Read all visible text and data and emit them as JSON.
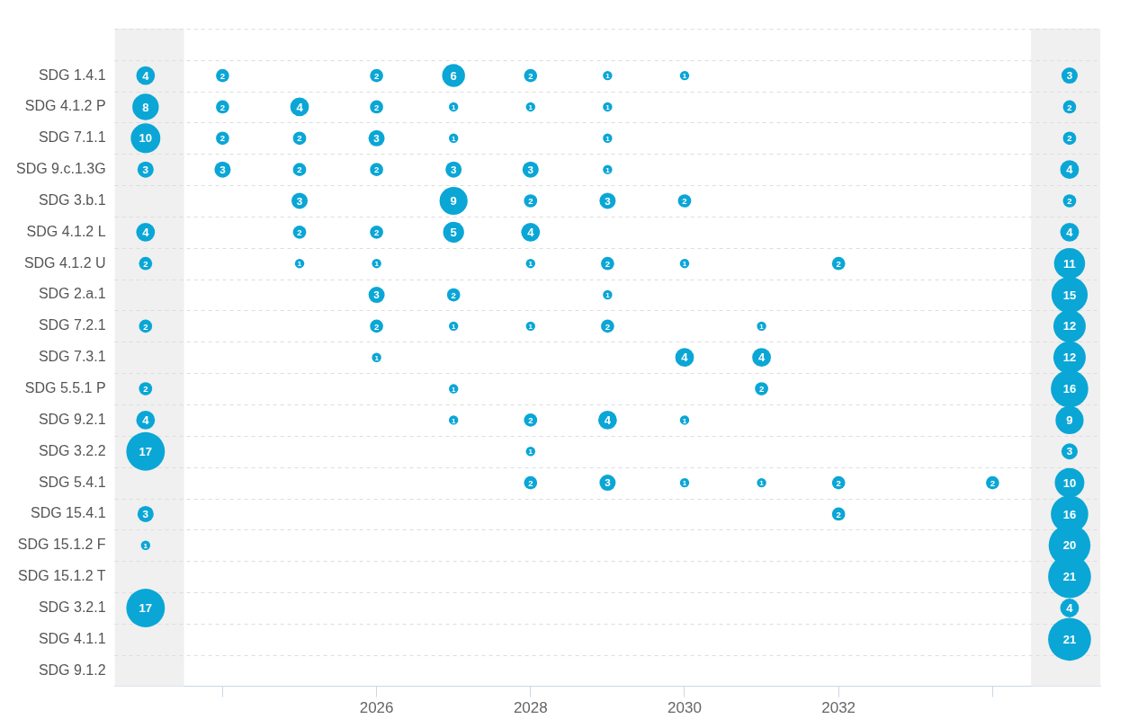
{
  "chart_data": {
    "type": "bubble",
    "orientation": "horizontal",
    "categories": [
      null,
      "SDG 1.4.1",
      "SDG 4.1.2 P",
      "SDG 7.1.1",
      "SDG 9.c.1.3G",
      "SDG 3.b.1",
      "SDG 4.1.2 L",
      "SDG 4.1.2 U",
      "SDG 2.a.1",
      "SDG 7.2.1",
      "SDG 7.3.1",
      "SDG 5.5.1 P",
      "SDG 9.2.1",
      "SDG 3.2.2",
      "SDG 5.4.1",
      "SDG 15.4.1",
      "SDG 15.1.2 F",
      "SDG 15.1.2 T",
      "SDG 3.2.1",
      "SDG 4.1.1",
      "SDG 9.1.2"
    ],
    "xlim": [
      2022.6,
      2035.4
    ],
    "xticks": [
      {
        "value": 2024,
        "label": null
      },
      2026,
      2028,
      2030,
      2032,
      {
        "value": 2034,
        "label": null
      }
    ],
    "grid": "y",
    "legend": false,
    "bands": [
      {
        "axis": "x",
        "from": 2022.6,
        "to": 2023.5,
        "color": "#f0f0f0"
      },
      {
        "axis": "x",
        "from": 2034.5,
        "to": 2035.4,
        "color": "#f0f0f0"
      }
    ],
    "series": [
      {
        "color": "#0aa6d6",
        "values": [
          null,
          2023,
          2023,
          2023,
          2023,
          null,
          2023,
          2023,
          null,
          2023,
          null,
          2023,
          2023,
          2023,
          null,
          2023,
          2023,
          null,
          2023,
          null,
          null
        ],
        "sizes": [
          null,
          4,
          8,
          10,
          3,
          null,
          4,
          2,
          null,
          2,
          null,
          2,
          4,
          17,
          null,
          3,
          1,
          null,
          17,
          null,
          null
        ],
        "value_labels": [
          null,
          "4",
          "8",
          "10",
          "3",
          null,
          "4",
          "2",
          null,
          "2",
          null,
          "2",
          "4",
          "17",
          null,
          "3",
          "1",
          null,
          "17",
          null,
          null
        ]
      },
      {
        "color": "#0aa6d6",
        "values": [
          null,
          2024,
          2024,
          2024,
          2024,
          null,
          null,
          null,
          null,
          null,
          null,
          null,
          null,
          null,
          null,
          null,
          null,
          null,
          null,
          null,
          null
        ],
        "sizes": [
          null,
          2,
          2,
          2,
          3,
          null,
          null,
          null,
          null,
          null,
          null,
          null,
          null,
          null,
          null,
          null,
          null,
          null,
          null,
          null,
          null
        ],
        "value_labels": [
          null,
          "2",
          "2",
          "2",
          "3",
          null,
          null,
          null,
          null,
          null,
          null,
          null,
          null,
          null,
          null,
          null,
          null,
          null,
          null,
          null,
          null
        ]
      },
      {
        "color": "#0aa6d6",
        "values": [
          null,
          null,
          2025,
          2025,
          2025,
          2025,
          2025,
          2025,
          null,
          null,
          null,
          null,
          null,
          null,
          null,
          null,
          null,
          null,
          null,
          null,
          null
        ],
        "sizes": [
          null,
          null,
          4,
          2,
          2,
          3,
          2,
          1,
          null,
          null,
          null,
          null,
          null,
          null,
          null,
          null,
          null,
          null,
          null,
          null,
          null
        ],
        "value_labels": [
          null,
          null,
          "4",
          "2",
          "2",
          "3",
          "2",
          "1",
          null,
          null,
          null,
          null,
          null,
          null,
          null,
          null,
          null,
          null,
          null,
          null,
          null
        ]
      },
      {
        "color": "#0aa6d6",
        "values": [
          null,
          2026,
          2026,
          2026,
          2026,
          null,
          2026,
          2026,
          2026,
          2026,
          2026,
          null,
          null,
          null,
          null,
          null,
          null,
          null,
          null,
          null,
          null
        ],
        "sizes": [
          null,
          2,
          2,
          3,
          2,
          null,
          2,
          1,
          3,
          2,
          1,
          null,
          null,
          null,
          null,
          null,
          null,
          null,
          null,
          null,
          null
        ],
        "value_labels": [
          null,
          "2",
          "2",
          "3",
          "2",
          null,
          "2",
          "1",
          "3",
          "2",
          "1",
          null,
          null,
          null,
          null,
          null,
          null,
          null,
          null,
          null,
          null
        ]
      },
      {
        "color": "#0aa6d6",
        "values": [
          null,
          2027,
          2027,
          2027,
          2027,
          2027,
          2027,
          null,
          2027,
          2027,
          null,
          2027,
          2027,
          null,
          null,
          null,
          null,
          null,
          null,
          null,
          null
        ],
        "sizes": [
          null,
          6,
          1,
          1,
          3,
          9,
          5,
          null,
          2,
          1,
          null,
          1,
          1,
          null,
          null,
          null,
          null,
          null,
          null,
          null,
          null
        ],
        "value_labels": [
          null,
          "6",
          "1",
          "1",
          "3",
          "9",
          "5",
          null,
          "2",
          "1",
          null,
          "1",
          "1",
          null,
          null,
          null,
          null,
          null,
          null,
          null,
          null
        ]
      },
      {
        "color": "#0aa6d6",
        "values": [
          null,
          2028,
          2028,
          null,
          2028,
          2028,
          2028,
          2028,
          null,
          2028,
          null,
          null,
          2028,
          2028,
          2028,
          null,
          null,
          null,
          null,
          null,
          null
        ],
        "sizes": [
          null,
          2,
          1,
          null,
          3,
          2,
          4,
          1,
          null,
          1,
          null,
          null,
          2,
          1,
          2,
          null,
          null,
          null,
          null,
          null,
          null
        ],
        "value_labels": [
          null,
          "2",
          "1",
          null,
          "3",
          "2",
          "4",
          "1",
          null,
          "1",
          null,
          null,
          "2",
          "1",
          "2",
          null,
          null,
          null,
          null,
          null,
          null
        ]
      },
      {
        "color": "#0aa6d6",
        "values": [
          null,
          2029,
          2029,
          2029,
          2029,
          2029,
          null,
          2029,
          2029,
          2029,
          null,
          null,
          2029,
          null,
          2029,
          null,
          null,
          null,
          null,
          null,
          null
        ],
        "sizes": [
          null,
          1,
          1,
          1,
          1,
          3,
          null,
          2,
          1,
          2,
          null,
          null,
          4,
          null,
          3,
          null,
          null,
          null,
          null,
          null,
          null
        ],
        "value_labels": [
          null,
          "1",
          "1",
          "1",
          "1",
          "3",
          null,
          "2",
          "1",
          "2",
          null,
          null,
          "4",
          null,
          "3",
          null,
          null,
          null,
          null,
          null,
          null
        ]
      },
      {
        "color": "#0aa6d6",
        "values": [
          null,
          2030,
          null,
          null,
          null,
          2030,
          null,
          2030,
          null,
          null,
          2030,
          null,
          2030,
          null,
          2030,
          null,
          null,
          null,
          null,
          null,
          null
        ],
        "sizes": [
          null,
          1,
          null,
          null,
          null,
          2,
          null,
          1,
          null,
          null,
          4,
          null,
          1,
          null,
          1,
          null,
          null,
          null,
          null,
          null,
          null
        ],
        "value_labels": [
          null,
          "1",
          null,
          null,
          null,
          "2",
          null,
          "1",
          null,
          null,
          "4",
          null,
          "1",
          null,
          "1",
          null,
          null,
          null,
          null,
          null,
          null
        ]
      },
      {
        "color": "#0aa6d6",
        "values": [
          null,
          null,
          null,
          null,
          null,
          null,
          null,
          null,
          null,
          2031,
          2031,
          2031,
          null,
          null,
          2031,
          null,
          null,
          null,
          null,
          null,
          null
        ],
        "sizes": [
          null,
          null,
          null,
          null,
          null,
          null,
          null,
          null,
          null,
          1,
          4,
          2,
          null,
          null,
          1,
          null,
          null,
          null,
          null,
          null,
          null
        ],
        "value_labels": [
          null,
          null,
          null,
          null,
          null,
          null,
          null,
          null,
          null,
          "1",
          "4",
          "2",
          null,
          null,
          "1",
          null,
          null,
          null,
          null,
          null,
          null
        ]
      },
      {
        "color": "#0aa6d6",
        "values": [
          null,
          null,
          null,
          null,
          null,
          null,
          null,
          2032,
          null,
          null,
          null,
          null,
          null,
          null,
          2032,
          2032,
          null,
          null,
          null,
          null,
          null
        ],
        "sizes": [
          null,
          null,
          null,
          null,
          null,
          null,
          null,
          2,
          null,
          null,
          null,
          null,
          null,
          null,
          2,
          2,
          null,
          null,
          null,
          null,
          null
        ],
        "value_labels": [
          null,
          null,
          null,
          null,
          null,
          null,
          null,
          "2",
          null,
          null,
          null,
          null,
          null,
          null,
          "2",
          "2",
          null,
          null,
          null,
          null,
          null
        ]
      },
      {
        "color": "#0aa6d6",
        "values": [
          null,
          null,
          null,
          null,
          null,
          null,
          null,
          null,
          null,
          null,
          null,
          null,
          null,
          null,
          2034,
          null,
          null,
          null,
          null,
          null,
          null
        ],
        "sizes": [
          null,
          null,
          null,
          null,
          null,
          null,
          null,
          null,
          null,
          null,
          null,
          null,
          null,
          null,
          2,
          null,
          null,
          null,
          null,
          null,
          null
        ],
        "value_labels": [
          null,
          null,
          null,
          null,
          null,
          null,
          null,
          null,
          null,
          null,
          null,
          null,
          null,
          null,
          "2",
          null,
          null,
          null,
          null,
          null,
          null
        ]
      },
      {
        "color": "#0aa6d6",
        "values": [
          null,
          2035,
          2035,
          2035,
          2035,
          2035,
          2035,
          2035,
          2035,
          2035,
          2035,
          2035,
          2035,
          2035,
          2035,
          2035,
          2035,
          2035,
          2035,
          2035,
          null
        ],
        "sizes": [
          null,
          3,
          2,
          2,
          4,
          2,
          4,
          11,
          15,
          12,
          12,
          16,
          9,
          3,
          10,
          16,
          20,
          21,
          4,
          21,
          null
        ],
        "value_labels": [
          null,
          "3",
          "2",
          "2",
          "4",
          "2",
          "4",
          "11",
          "15",
          "12",
          "12",
          "16",
          "9",
          "3",
          "10",
          "16",
          "20",
          "21",
          "4",
          "21",
          null
        ]
      }
    ]
  }
}
